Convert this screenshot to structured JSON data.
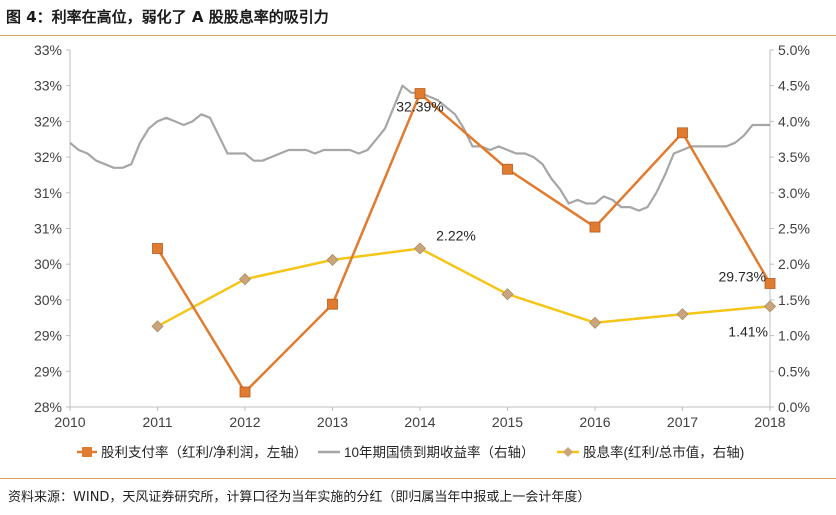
{
  "figure": {
    "title": "图 4：利率在高位，弱化了 A 股股息率的吸引力",
    "source": "资料来源：WIND，天风证券研究所，计算口径为当年实施的分红（即归属当年中报或上一会计年度）"
  },
  "chart_data": {
    "type": "line",
    "x_ticks": [
      "2010",
      "2011",
      "2012",
      "2013",
      "2014",
      "2015",
      "2016",
      "2017",
      "2018"
    ],
    "x_range": [
      2010,
      2018
    ],
    "left_axis": {
      "ticks": [
        "28%",
        "29%",
        "29%",
        "30%",
        "30%",
        "31%",
        "31%",
        "32%",
        "32%",
        "33%",
        "33%"
      ],
      "range": [
        28.0,
        33.0
      ]
    },
    "right_axis": {
      "ticks": [
        "0.0%",
        "0.5%",
        "1.0%",
        "1.5%",
        "2.0%",
        "2.5%",
        "3.0%",
        "3.5%",
        "4.0%",
        "4.5%",
        "5.0%"
      ],
      "range": [
        0.0,
        5.0
      ]
    },
    "colors": {
      "payout": "#e07b30",
      "bond": "#a6a6a6",
      "dividend": "#f5c518",
      "dividend_marker": "#c8a57c"
    },
    "series": [
      {
        "name": "股利支付率（红利/净利润，左轴）",
        "axis": "left",
        "x": [
          2011,
          2012,
          2013,
          2014,
          2015,
          2016,
          2017,
          2018
        ],
        "values": [
          30.22,
          28.21,
          29.44,
          32.39,
          31.33,
          30.52,
          31.84,
          29.73
        ]
      },
      {
        "name": "10年期国债到期收益率（右轴）",
        "axis": "right",
        "x": [
          2010.0,
          2010.1,
          2010.2,
          2010.3,
          2010.4,
          2010.5,
          2010.6,
          2010.7,
          2010.8,
          2010.9,
          2011.0,
          2011.1,
          2011.2,
          2011.3,
          2011.4,
          2011.5,
          2011.6,
          2011.7,
          2011.8,
          2011.9,
          2012.0,
          2012.1,
          2012.2,
          2012.3,
          2012.4,
          2012.5,
          2012.6,
          2012.7,
          2012.8,
          2012.9,
          2013.0,
          2013.1,
          2013.2,
          2013.3,
          2013.4,
          2013.5,
          2013.6,
          2013.7,
          2013.8,
          2013.9,
          2014.0,
          2014.1,
          2014.2,
          2014.3,
          2014.4,
          2014.5,
          2014.6,
          2014.7,
          2014.8,
          2014.9,
          2015.0,
          2015.1,
          2015.2,
          2015.3,
          2015.4,
          2015.5,
          2015.6,
          2015.7,
          2015.8,
          2015.9,
          2016.0,
          2016.1,
          2016.2,
          2016.3,
          2016.4,
          2016.5,
          2016.6,
          2016.7,
          2016.8,
          2016.9,
          2017.0,
          2017.1,
          2017.2,
          2017.3,
          2017.4,
          2017.5,
          2017.6,
          2017.7,
          2017.8,
          2017.9,
          2018.0
        ],
        "values": [
          3.7,
          3.6,
          3.55,
          3.45,
          3.4,
          3.35,
          3.35,
          3.4,
          3.7,
          3.9,
          4.0,
          4.05,
          4.0,
          3.95,
          4.0,
          4.1,
          4.05,
          3.8,
          3.55,
          3.55,
          3.55,
          3.45,
          3.45,
          3.5,
          3.55,
          3.6,
          3.6,
          3.6,
          3.55,
          3.6,
          3.6,
          3.6,
          3.6,
          3.55,
          3.6,
          3.75,
          3.9,
          4.2,
          4.5,
          4.4,
          4.4,
          4.35,
          4.3,
          4.2,
          4.1,
          3.9,
          3.65,
          3.65,
          3.6,
          3.65,
          3.6,
          3.55,
          3.55,
          3.5,
          3.4,
          3.2,
          3.05,
          2.85,
          2.9,
          2.85,
          2.85,
          2.95,
          2.9,
          2.8,
          2.8,
          2.75,
          2.8,
          3.0,
          3.25,
          3.55,
          3.6,
          3.65,
          3.65,
          3.65,
          3.65,
          3.65,
          3.7,
          3.8,
          3.95,
          3.95,
          3.95
        ]
      },
      {
        "name": "股息率(红利/总市值，右轴)",
        "axis": "right",
        "x": [
          2011,
          2012,
          2013,
          2014,
          2015,
          2016,
          2017,
          2018
        ],
        "values": [
          1.13,
          1.79,
          2.06,
          2.22,
          1.58,
          1.18,
          1.3,
          1.41
        ]
      }
    ],
    "annotations": [
      {
        "text": "32.39%",
        "series": 0,
        "index": 3
      },
      {
        "text": "2.22%",
        "series": 2,
        "index": 3
      },
      {
        "text": "29.73%",
        "series": 0,
        "index": 7
      },
      {
        "text": "1.41%",
        "series": 2,
        "index": 7
      }
    ],
    "legend": [
      {
        "label": "股利支付率（红利/净利润，左轴）",
        "style": "orange-square"
      },
      {
        "label": "10年期国债到期收益率（右轴）",
        "style": "gray-line"
      },
      {
        "label": "股息率(红利/总市值，右轴)",
        "style": "yellow-diamond"
      }
    ]
  }
}
